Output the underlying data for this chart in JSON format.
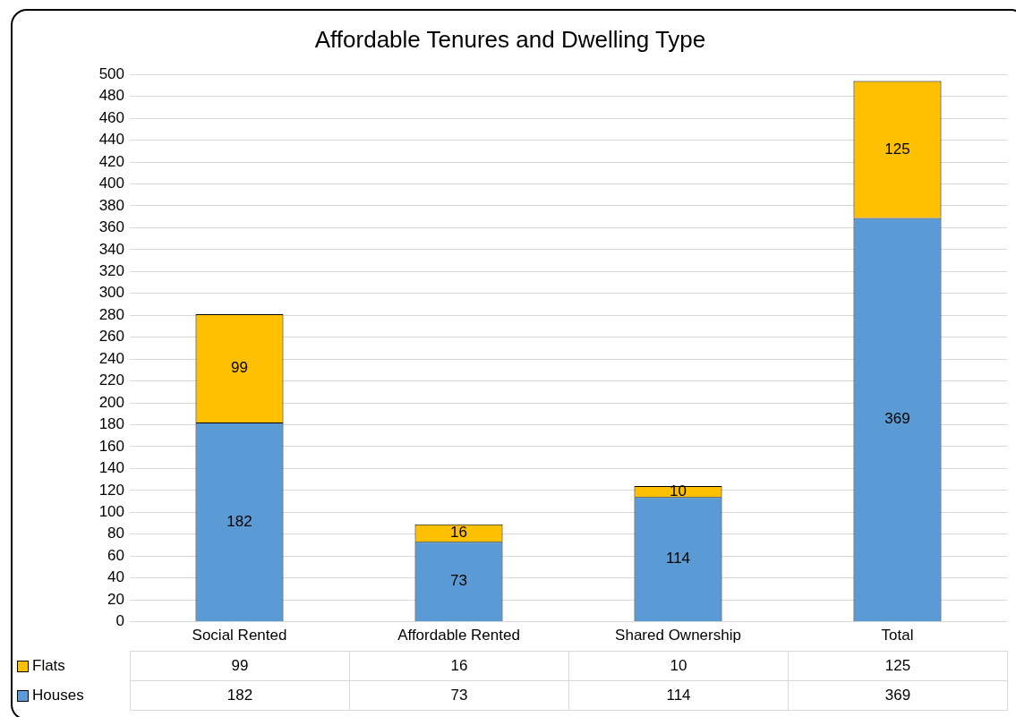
{
  "chart_data": {
    "type": "bar",
    "title": "Affordable Tenures and Dwelling Type",
    "categories": [
      "Social Rented",
      "Affordable Rented",
      "Shared Ownership",
      "Total"
    ],
    "series": [
      {
        "name": "Houses",
        "color": "#5b9bd5",
        "values": [
          182,
          73,
          114,
          369
        ],
        "value_labels": [
          "182",
          "73",
          "114",
          "369"
        ]
      },
      {
        "name": "Flats",
        "color": "#ffc000",
        "values": [
          99,
          16,
          10,
          125
        ],
        "value_labels": [
          "99",
          "16",
          "10",
          "125"
        ]
      }
    ],
    "stacked": true,
    "ylim": [
      0,
      500
    ],
    "yticks": [
      0,
      20,
      40,
      60,
      80,
      100,
      120,
      140,
      160,
      180,
      200,
      220,
      240,
      260,
      280,
      300,
      320,
      340,
      360,
      380,
      400,
      420,
      440,
      460,
      480,
      500
    ],
    "grid": "y",
    "legend": "bottom",
    "annotations": [
      "99",
      "16",
      "10",
      "125",
      "182",
      "73",
      "114",
      "369"
    ]
  }
}
